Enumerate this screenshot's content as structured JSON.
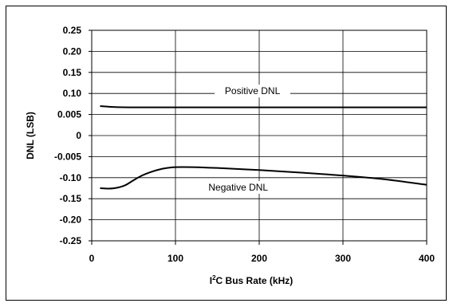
{
  "chart_data": {
    "type": "line",
    "xlabel": "I²C Bus Rate (kHz)",
    "xlabel_main": "I",
    "xlabel_sup": "2",
    "xlabel_rest": "C Bus Rate (kHz)",
    "ylabel": "DNL (LSB)",
    "xlim": [
      0,
      400
    ],
    "x_ticks": [
      "0",
      "100",
      "200",
      "300",
      "400"
    ],
    "y_ticks": [
      "0.25",
      "0.20",
      "0.15",
      "0.10",
      "0.005",
      "0",
      "-0.005",
      "-0.10",
      "-0.15",
      "-0.20",
      "-0.25"
    ],
    "grid": true,
    "series": [
      {
        "name": "Positive DNL",
        "x": [
          10,
          25,
          50,
          100,
          150,
          200,
          250,
          300,
          350,
          400
        ],
        "y": [
          0.07,
          0.068,
          0.067,
          0.067,
          0.067,
          0.067,
          0.067,
          0.067,
          0.067,
          0.067
        ]
      },
      {
        "name": "Negative DNL",
        "x": [
          10,
          20,
          30,
          40,
          50,
          60,
          70,
          80,
          90,
          100,
          120,
          150,
          200,
          250,
          300,
          350,
          400
        ],
        "y": [
          -0.125,
          -0.126,
          -0.124,
          -0.118,
          -0.106,
          -0.095,
          -0.087,
          -0.081,
          -0.077,
          -0.075,
          -0.075,
          -0.077,
          -0.082,
          -0.088,
          -0.095,
          -0.104,
          -0.117
        ]
      }
    ],
    "annotations": [
      {
        "text": "Positive DNL",
        "series": 0
      },
      {
        "text": "Negative DNL",
        "series": 1
      }
    ]
  }
}
